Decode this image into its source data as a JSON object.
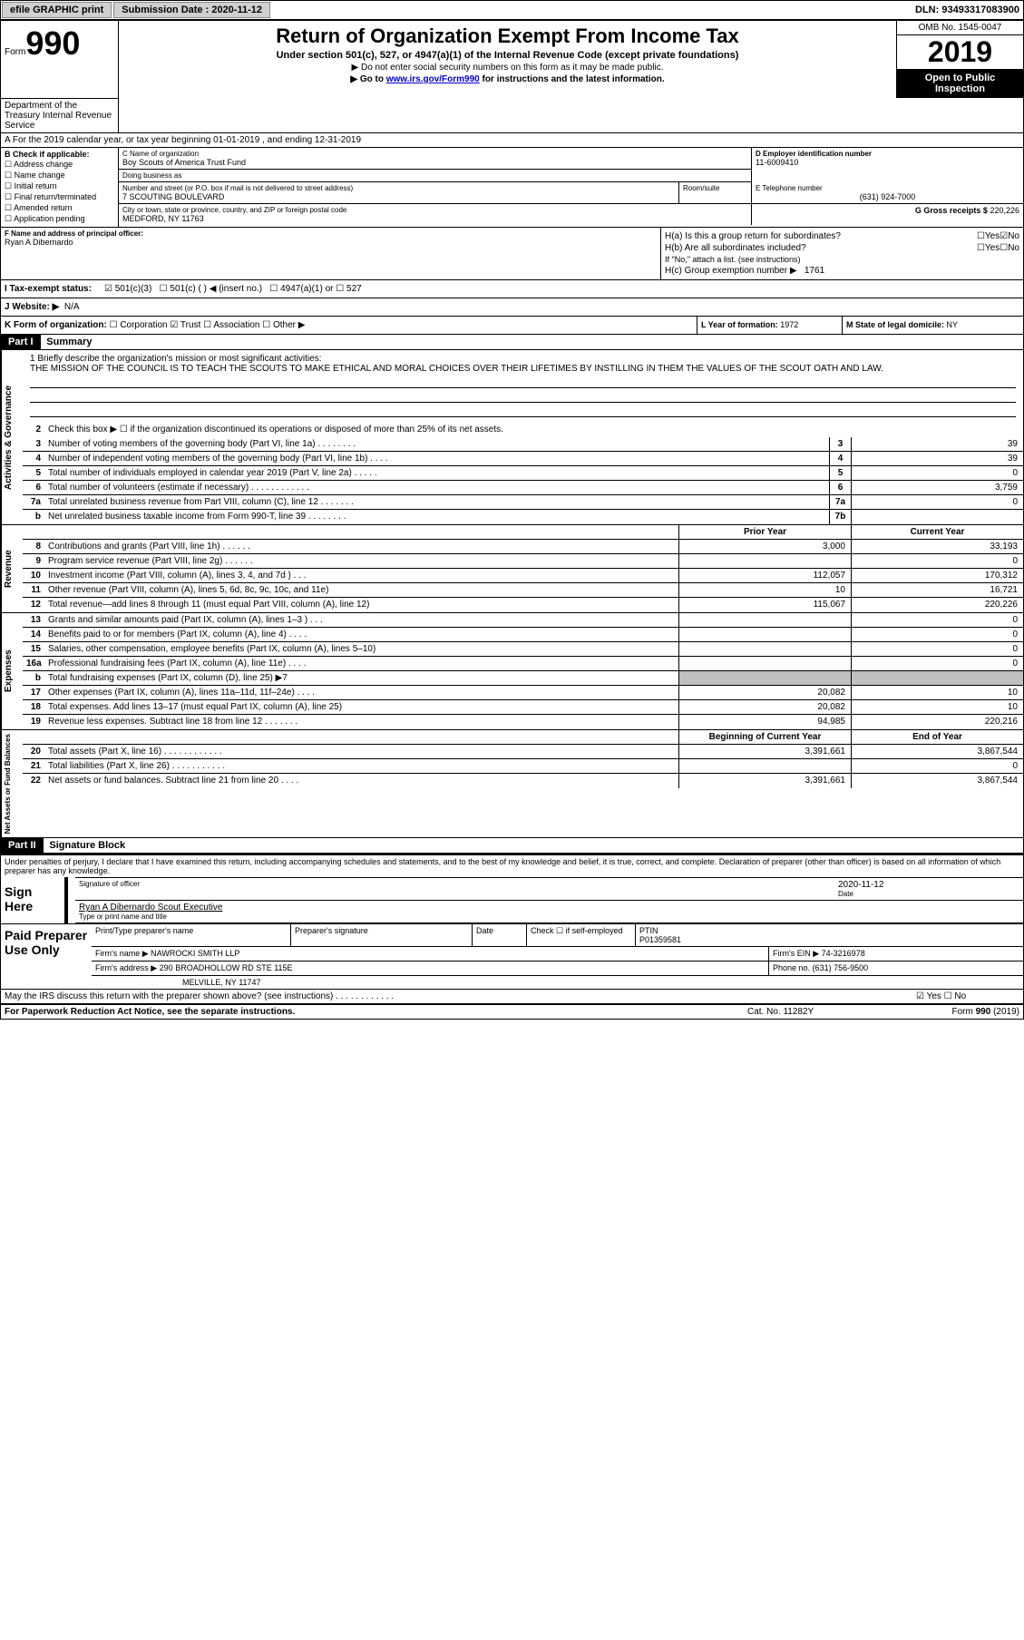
{
  "topbar": {
    "efile": "efile GRAPHIC print",
    "sub_label": "Submission Date :",
    "sub_date": "2020-11-12",
    "dln_label": "DLN:",
    "dln": "93493317083900"
  },
  "header": {
    "form_word": "Form",
    "form_num": "990",
    "title": "Return of Organization Exempt From Income Tax",
    "subtitle": "Under section 501(c), 527, or 4947(a)(1) of the Internal Revenue Code (except private foundations)",
    "note1": "▶ Do not enter social security numbers on this form as it may be made public.",
    "note2_pre": "▶ Go to ",
    "note2_link": "www.irs.gov/Form990",
    "note2_post": " for instructions and the latest information.",
    "omb": "OMB No. 1545-0047",
    "year": "2019",
    "inspect": "Open to Public Inspection",
    "dept": "Department of the Treasury Internal Revenue Service"
  },
  "lineA": "A For the 2019 calendar year, or tax year beginning 01-01-2019    , and ending 12-31-2019",
  "B": {
    "label": "B Check if applicable:",
    "items": [
      "Address change",
      "Name change",
      "Initial return",
      "Final return/terminated",
      "Amended return",
      "Application pending"
    ]
  },
  "C": {
    "name_label": "C Name of organization",
    "name": "Boy Scouts of America Trust Fund",
    "dba_label": "Doing business as",
    "dba": "",
    "addr_label": "Number and street (or P.O. box if mail is not delivered to street address)",
    "room_label": "Room/suite",
    "addr": "7 SCOUTING BOULEVARD",
    "city_label": "City or town, state or province, country, and ZIP or foreign postal code",
    "city": "MEDFORD, NY  11763"
  },
  "D": {
    "label": "D Employer identification number",
    "val": "11-6009410"
  },
  "E": {
    "label": "E Telephone number",
    "val": "(631) 924-7000"
  },
  "G": {
    "label": "G Gross receipts $",
    "val": "220,226"
  },
  "F": {
    "label": "F  Name and address of principal officer:",
    "name": "Ryan A Dibernardo"
  },
  "H": {
    "a": "H(a)  Is this a group return for subordinates?",
    "aYes": "Yes",
    "aNo": "No",
    "b": "H(b)  Are all subordinates included?",
    "bYes": "Yes",
    "bNo": "No",
    "bnote": "If \"No,\" attach a list. (see instructions)",
    "c": "H(c)  Group exemption number ▶",
    "cval": "1761"
  },
  "I": {
    "label": "I  Tax-exempt status:",
    "c3": "501(c)(3)",
    "c": "501(c) (  ) ◀ (insert no.)",
    "a1": "4947(a)(1) or",
    "s527": "527"
  },
  "J": {
    "label": "J  Website: ▶",
    "val": "N/A"
  },
  "K": {
    "label": "K Form of organization:",
    "corp": "Corporation",
    "trust": "Trust",
    "assoc": "Association",
    "other": "Other ▶"
  },
  "L": {
    "label": "L Year of formation:",
    "val": "1972"
  },
  "M": {
    "label": "M State of legal domicile:",
    "val": "NY"
  },
  "partI": {
    "hdr": "Part I",
    "title": "Summary"
  },
  "mission": {
    "label": "1 Briefly describe the organization's mission or most significant activities:",
    "text": "THE MISSION OF THE COUNCIL IS TO TEACH THE SCOUTS TO MAKE ETHICAL AND MORAL CHOICES OVER THEIR LIFETIMES BY INSTILLING IN THEM THE VALUES OF THE SCOUT OATH AND LAW."
  },
  "line2": "Check this box ▶ ☐  if the organization discontinued its operations or disposed of more than 25% of its net assets.",
  "vtabs": {
    "gov": "Activities & Governance",
    "rev": "Revenue",
    "exp": "Expenses",
    "net": "Net Assets or Fund Balances"
  },
  "lines_gov": [
    {
      "n": "3",
      "d": "Number of voting members of the governing body (Part VI, line 1a)   .    .    .    .    .    .    .    .",
      "b": "3",
      "v": "39"
    },
    {
      "n": "4",
      "d": "Number of independent voting members of the governing body (Part VI, line 1b)    .    .    .    .",
      "b": "4",
      "v": "39"
    },
    {
      "n": "5",
      "d": "Total number of individuals employed in calendar year 2019 (Part V, line 2a)   .    .    .    .    .",
      "b": "5",
      "v": "0"
    },
    {
      "n": "6",
      "d": "Total number of volunteers (estimate if necessary)    .    .    .    .    .    .    .    .    .    .    .    .",
      "b": "6",
      "v": "3,759"
    },
    {
      "n": "7a",
      "d": "Total unrelated business revenue from Part VIII, column (C), line 12    .    .    .    .    .    .    .",
      "b": "7a",
      "v": "0"
    },
    {
      "n": "b",
      "d": "Net unrelated business taxable income from Form 990-T, line 39    .    .    .    .    .    .    .    .",
      "b": "7b",
      "v": ""
    }
  ],
  "cols": {
    "prior": "Prior Year",
    "current": "Current Year"
  },
  "lines_rev": [
    {
      "n": "8",
      "d": "Contributions and grants (Part VIII, line 1h)    .    .    .    .    .    .",
      "p": "3,000",
      "c": "33,193"
    },
    {
      "n": "9",
      "d": "Program service revenue (Part VIII, line 2g)    .    .    .    .    .    .",
      "p": "",
      "c": "0"
    },
    {
      "n": "10",
      "d": "Investment income (Part VIII, column (A), lines 3, 4, and 7d )    .    .    .",
      "p": "112,057",
      "c": "170,312"
    },
    {
      "n": "11",
      "d": "Other revenue (Part VIII, column (A), lines 5, 6d, 8c, 9c, 10c, and 11e)",
      "p": "10",
      "c": "16,721"
    },
    {
      "n": "12",
      "d": "Total revenue—add lines 8 through 11 (must equal Part VIII, column (A), line 12)",
      "p": "115,067",
      "c": "220,226"
    }
  ],
  "lines_exp": [
    {
      "n": "13",
      "d": "Grants and similar amounts paid (Part IX, column (A), lines 1–3 )   .    .    .",
      "p": "",
      "c": "0"
    },
    {
      "n": "14",
      "d": "Benefits paid to or for members (Part IX, column (A), line 4)   .    .    .    .",
      "p": "",
      "c": "0"
    },
    {
      "n": "15",
      "d": "Salaries, other compensation, employee benefits (Part IX, column (A), lines 5–10)",
      "p": "",
      "c": "0"
    },
    {
      "n": "16a",
      "d": "Professional fundraising fees (Part IX, column (A), line 11e)   .    .    .    .",
      "p": "",
      "c": "0"
    },
    {
      "n": "b",
      "d": "Total fundraising expenses (Part IX, column (D), line 25) ▶7",
      "p": "SHADE",
      "c": "SHADE"
    },
    {
      "n": "17",
      "d": "Other expenses (Part IX, column (A), lines 11a–11d, 11f–24e)   .    .    .    .",
      "p": "20,082",
      "c": "10"
    },
    {
      "n": "18",
      "d": "Total expenses. Add lines 13–17 (must equal Part IX, column (A), line 25)",
      "p": "20,082",
      "c": "10"
    },
    {
      "n": "19",
      "d": "Revenue less expenses. Subtract line 18 from line 12   .    .    .    .    .    .    .",
      "p": "94,985",
      "c": "220,216"
    }
  ],
  "cols2": {
    "beg": "Beginning of Current Year",
    "end": "End of Year"
  },
  "lines_net": [
    {
      "n": "20",
      "d": "Total assets (Part X, line 16)   .    .    .    .    .    .    .    .    .    .    .    .",
      "p": "3,391,661",
      "c": "3,867,544"
    },
    {
      "n": "21",
      "d": "Total liabilities (Part X, line 26)   .    .    .    .    .    .    .    .    .    .    .",
      "p": "",
      "c": "0"
    },
    {
      "n": "22",
      "d": "Net assets or fund balances. Subtract line 21 from line 20   .    .    .    .",
      "p": "3,391,661",
      "c": "3,867,544"
    }
  ],
  "partII": {
    "hdr": "Part II",
    "title": "Signature Block"
  },
  "sig": {
    "decl": "Under penalties of perjury, I declare that I have examined this return, including accompanying schedules and statements, and to the best of my knowledge and belief, it is true, correct, and complete. Declaration of preparer (other than officer) is based on all information of which preparer has any knowledge.",
    "here": "Sign Here",
    "off_label": "Signature of officer",
    "date_label": "Date",
    "date": "2020-11-12",
    "name": "Ryan A Dibernardo  Scout Executive",
    "name_label": "Type or print name and title"
  },
  "paid": {
    "label": "Paid Preparer Use Only",
    "ptname_label": "Print/Type preparer's name",
    "psig_label": "Preparer's signature",
    "pdate_label": "Date",
    "check_label": "Check ☐ if self-employed",
    "ptin_label": "PTIN",
    "ptin": "P01359581",
    "firm_label": "Firm's name    ▶",
    "firm": "NAWROCKI SMITH LLP",
    "ein_label": "Firm's EIN ▶",
    "ein": "74-3216978",
    "addr_label": "Firm's address ▶",
    "addr1": "290 BROADHOLLOW RD STE 115E",
    "addr2": "MELVILLE, NY  11747",
    "phone_label": "Phone no.",
    "phone": "(631) 756-9500"
  },
  "discuss": {
    "text": "May the IRS discuss this return with the preparer shown above? (see instructions)   .    .    .    .    .    .    .    .    .    .    .    .",
    "yes": "Yes",
    "no": "No"
  },
  "footer": {
    "left": "For Paperwork Reduction Act Notice, see the separate instructions.",
    "mid": "Cat. No. 11282Y",
    "right": "Form 990 (2019)"
  }
}
